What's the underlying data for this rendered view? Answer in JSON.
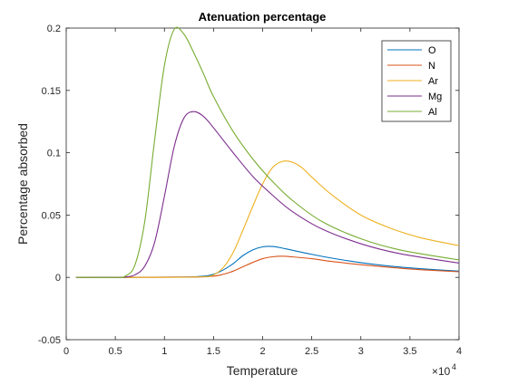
{
  "chart_data": {
    "type": "line",
    "title": "Atenuation percentage",
    "xlabel": "Temperature",
    "ylabel": "Percentage absorbed",
    "x_exponent_label": "×10",
    "x_exponent_power": "4",
    "xlim": [
      0,
      40000
    ],
    "ylim": [
      -0.05,
      0.2
    ],
    "xticks": [
      0,
      5000,
      10000,
      15000,
      20000,
      25000,
      30000,
      35000,
      40000
    ],
    "xtick_labels": [
      "0",
      "0.5",
      "1",
      "1.5",
      "2",
      "2.5",
      "3",
      "3.5",
      "4"
    ],
    "yticks": [
      -0.05,
      0,
      0.05,
      0.1,
      0.15,
      0.2
    ],
    "ytick_labels": [
      "-0.05",
      "0",
      "0.05",
      "0.1",
      "0.15",
      "0.2"
    ],
    "grid": false,
    "legend_position": "top-right",
    "series": [
      {
        "name": "O",
        "color": "#0072BD",
        "x": [
          1000,
          6000,
          12000,
          14000,
          15000,
          16000,
          17000,
          18000,
          19000,
          20000,
          21000,
          22000,
          23000,
          25000,
          27000,
          30000,
          33000,
          36000,
          40000
        ],
        "y": [
          0,
          0,
          0.0003,
          0.001,
          0.0025,
          0.006,
          0.011,
          0.0175,
          0.022,
          0.0245,
          0.0248,
          0.0235,
          0.0218,
          0.0185,
          0.0155,
          0.0118,
          0.009,
          0.007,
          0.005
        ]
      },
      {
        "name": "N",
        "color": "#D95319",
        "x": [
          1000,
          6000,
          13000,
          15000,
          16000,
          17000,
          18000,
          19000,
          20000,
          21000,
          22000,
          23000,
          25000,
          27000,
          30000,
          33000,
          36000,
          40000
        ],
        "y": [
          0,
          0,
          0.0003,
          0.001,
          0.0025,
          0.005,
          0.0085,
          0.012,
          0.015,
          0.0165,
          0.017,
          0.0165,
          0.015,
          0.0128,
          0.0102,
          0.008,
          0.0062,
          0.0045
        ]
      },
      {
        "name": "Ar",
        "color": "#EDB120",
        "x": [
          1000,
          10000,
          14000,
          15000,
          16000,
          17000,
          18000,
          19000,
          20000,
          21000,
          22000,
          23000,
          24000,
          25000,
          27000,
          30000,
          33000,
          36000,
          40000
        ],
        "y": [
          0,
          0,
          0.0005,
          0.002,
          0.008,
          0.02,
          0.038,
          0.057,
          0.075,
          0.088,
          0.093,
          0.0925,
          0.088,
          0.0805,
          0.0665,
          0.05,
          0.0395,
          0.032,
          0.0255
        ]
      },
      {
        "name": "Mg",
        "color": "#7E2F8E",
        "x": [
          1000,
          5000,
          6000,
          7000,
          8000,
          9000,
          10000,
          11000,
          12000,
          13000,
          14000,
          15000,
          17000,
          19000,
          21000,
          23000,
          26000,
          30000,
          34000,
          40000
        ],
        "y": [
          0,
          0,
          0.0003,
          0.002,
          0.009,
          0.028,
          0.065,
          0.105,
          0.128,
          0.133,
          0.129,
          0.12,
          0.1,
          0.081,
          0.066,
          0.053,
          0.039,
          0.027,
          0.019,
          0.0115
        ]
      },
      {
        "name": "Al",
        "color": "#77AC30",
        "x": [
          1000,
          5000,
          6000,
          7000,
          8000,
          9000,
          10000,
          11000,
          12000,
          13000,
          14000,
          15000,
          17000,
          19000,
          21000,
          23000,
          26000,
          30000,
          34000,
          40000
        ],
        "y": [
          0,
          0,
          0.001,
          0.01,
          0.045,
          0.11,
          0.17,
          0.199,
          0.195,
          0.18,
          0.163,
          0.145,
          0.117,
          0.095,
          0.077,
          0.062,
          0.045,
          0.031,
          0.022,
          0.014
        ]
      }
    ]
  }
}
